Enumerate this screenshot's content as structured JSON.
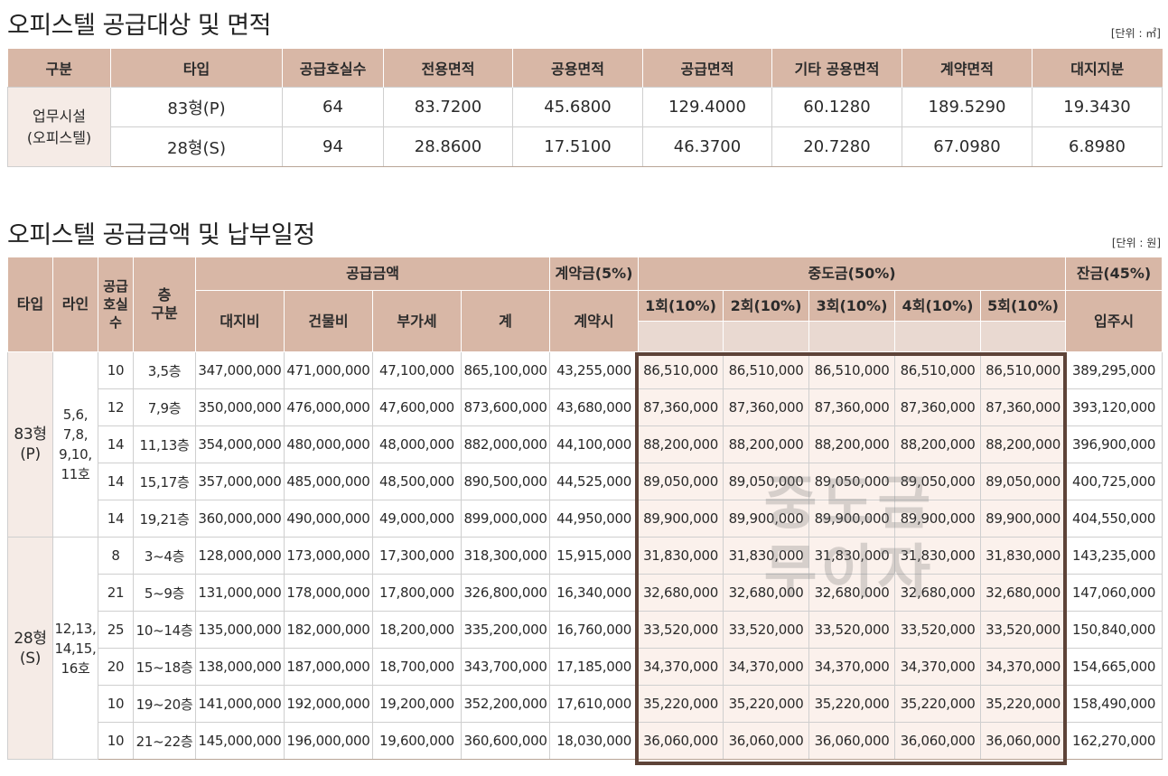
{
  "section1": {
    "title": "오피스텔 공급대상 및 면적",
    "unit": "[단위 : ㎡]",
    "headers": [
      "구분",
      "타입",
      "공급호실수",
      "전용면적",
      "공용면적",
      "공급면적",
      "기타 공용면적",
      "계약면적",
      "대지지분"
    ],
    "category": "업무시설\n(오피스텔)",
    "rows": [
      [
        "83형(P)",
        "64",
        "83.7200",
        "45.6800",
        "129.4000",
        "60.1280",
        "189.5290",
        "19.3430"
      ],
      [
        "28형(S)",
        "94",
        "28.8600",
        "17.5100",
        "46.3700",
        "20.7280",
        "67.0980",
        "6.8980"
      ]
    ]
  },
  "section2": {
    "title": "오피스텔 공급금액 및 납부일정",
    "unit": "[단위 : 원]",
    "headers": {
      "type": "타입",
      "line": "라인",
      "units": "공급\n호실\n수",
      "floor": "층\n구분",
      "supply": "공급금액",
      "land": "대지비",
      "building": "건물비",
      "vat": "부가세",
      "total": "계",
      "deposit": "계약금(5%)",
      "deposit_sub": "계약시",
      "middle": "중도금(50%)",
      "m1": "1회(10%)",
      "m2": "2회(10%)",
      "m3": "3회(10%)",
      "m4": "4회(10%)",
      "m5": "5회(10%)",
      "balance": "잔금(45%)",
      "balance_sub": "입주시"
    },
    "groups": [
      {
        "type": "83형\n(P)",
        "line": "5,6,\n7,8,\n9,10,\n11호"
      },
      {
        "type": "28형\n(S)",
        "line": "12,13,\n14,15,\n16호"
      }
    ],
    "rows": [
      [
        "10",
        "3,5층",
        "347,000,000",
        "471,000,000",
        "47,100,000",
        "865,100,000",
        "43,255,000",
        "86,510,000",
        "86,510,000",
        "86,510,000",
        "86,510,000",
        "86,510,000",
        "389,295,000"
      ],
      [
        "12",
        "7,9층",
        "350,000,000",
        "476,000,000",
        "47,600,000",
        "873,600,000",
        "43,680,000",
        "87,360,000",
        "87,360,000",
        "87,360,000",
        "87,360,000",
        "87,360,000",
        "393,120,000"
      ],
      [
        "14",
        "11,13층",
        "354,000,000",
        "480,000,000",
        "48,000,000",
        "882,000,000",
        "44,100,000",
        "88,200,000",
        "88,200,000",
        "88,200,000",
        "88,200,000",
        "88,200,000",
        "396,900,000"
      ],
      [
        "14",
        "15,17층",
        "357,000,000",
        "485,000,000",
        "48,500,000",
        "890,500,000",
        "44,525,000",
        "89,050,000",
        "89,050,000",
        "89,050,000",
        "89,050,000",
        "89,050,000",
        "400,725,000"
      ],
      [
        "14",
        "19,21층",
        "360,000,000",
        "490,000,000",
        "49,000,000",
        "899,000,000",
        "44,950,000",
        "89,900,000",
        "89,900,000",
        "89,900,000",
        "89,900,000",
        "89,900,000",
        "404,550,000"
      ],
      [
        "8",
        "3~4층",
        "128,000,000",
        "173,000,000",
        "17,300,000",
        "318,300,000",
        "15,915,000",
        "31,830,000",
        "31,830,000",
        "31,830,000",
        "31,830,000",
        "31,830,000",
        "143,235,000"
      ],
      [
        "21",
        "5~9층",
        "131,000,000",
        "178,000,000",
        "17,800,000",
        "326,800,000",
        "16,340,000",
        "32,680,000",
        "32,680,000",
        "32,680,000",
        "32,680,000",
        "32,680,000",
        "147,060,000"
      ],
      [
        "25",
        "10~14층",
        "135,000,000",
        "182,000,000",
        "18,200,000",
        "335,200,000",
        "16,760,000",
        "33,520,000",
        "33,520,000",
        "33,520,000",
        "33,520,000",
        "33,520,000",
        "150,840,000"
      ],
      [
        "20",
        "15~18층",
        "138,000,000",
        "187,000,000",
        "18,700,000",
        "343,700,000",
        "17,185,000",
        "34,370,000",
        "34,370,000",
        "34,370,000",
        "34,370,000",
        "34,370,000",
        "154,665,000"
      ],
      [
        "10",
        "19~20층",
        "141,000,000",
        "192,000,000",
        "19,200,000",
        "352,200,000",
        "17,610,000",
        "35,220,000",
        "35,220,000",
        "35,220,000",
        "35,220,000",
        "35,220,000",
        "158,490,000"
      ],
      [
        "10",
        "21~22층",
        "145,000,000",
        "196,000,000",
        "19,600,000",
        "360,600,000",
        "18,030,000",
        "36,060,000",
        "36,060,000",
        "36,060,000",
        "36,060,000",
        "36,060,000",
        "162,270,000"
      ]
    ],
    "watermark": "중도금\n무이자"
  },
  "colors": {
    "header_bg": "#d8b7a6",
    "label_bg": "#f5ebe6",
    "highlight_bg": "#fbf1ec",
    "frame": "#5e4338"
  }
}
